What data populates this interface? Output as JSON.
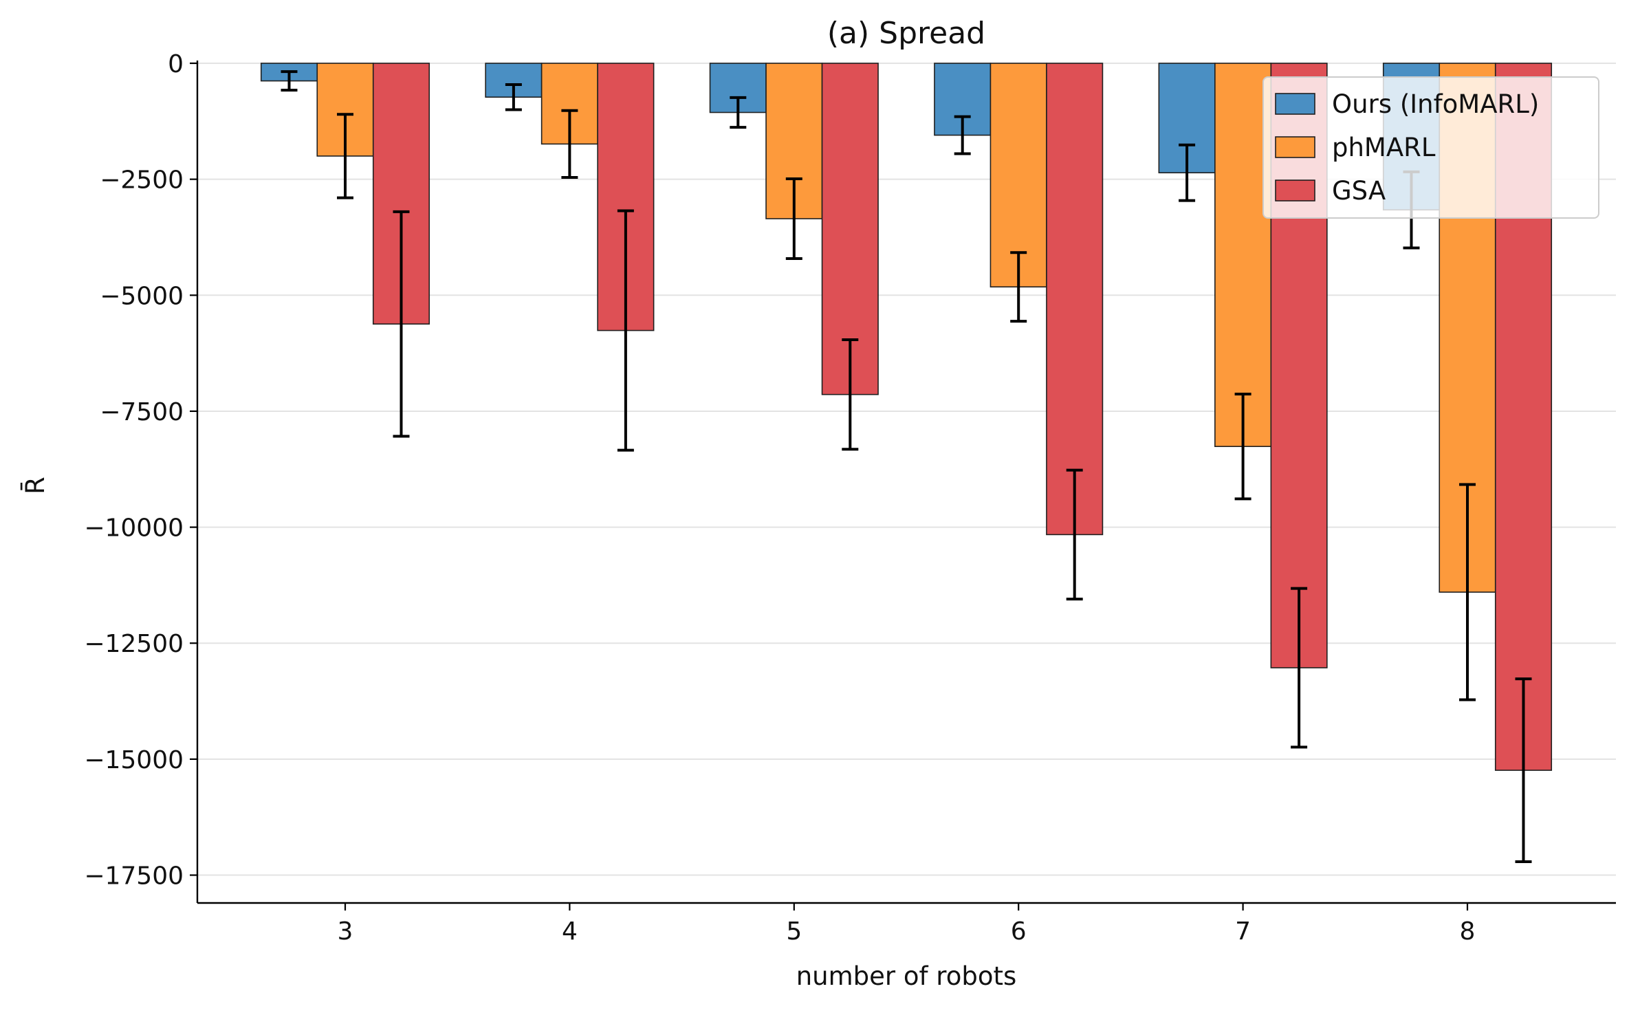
{
  "chart_data": {
    "type": "bar",
    "title": "(a) Spread",
    "xlabel": "number of robots",
    "ylabel": "R̄",
    "categories": [
      "3",
      "4",
      "5",
      "6",
      "7",
      "8"
    ],
    "ylim": [
      -18100,
      0
    ],
    "yticks": [
      0,
      -2500,
      -5000,
      -7500,
      -10000,
      -12500,
      -15000,
      -17500
    ],
    "ytick_labels": [
      "0",
      "−2500",
      "−5000",
      "−7500",
      "−10000",
      "−12500",
      "−15000",
      "−17500"
    ],
    "grid": "horizontal",
    "legend_position": "top-right",
    "series": [
      {
        "name": "Ours (InfoMARL)",
        "color": "#4a8fc3",
        "values": [
          -380,
          -730,
          -1060,
          -1550,
          -2360,
          -3160
        ],
        "errors": [
          200,
          270,
          320,
          400,
          600,
          820
        ]
      },
      {
        "name": "phMARL",
        "color": "#fd9a3c",
        "values": [
          -2000,
          -1740,
          -3350,
          -4820,
          -8260,
          -11400
        ],
        "errors": [
          900,
          720,
          860,
          740,
          1130,
          2320
        ]
      },
      {
        "name": "GSA",
        "color": "#de5055",
        "values": [
          -5620,
          -5760,
          -7140,
          -10160,
          -13030,
          -15240
        ],
        "errors": [
          2420,
          2580,
          1180,
          1390,
          1710,
          1970
        ]
      }
    ]
  }
}
